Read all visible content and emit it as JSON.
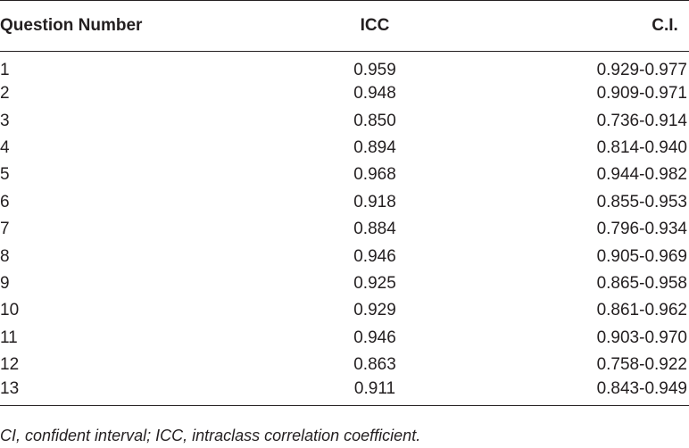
{
  "table": {
    "header": [
      "Question Number",
      "ICC",
      "C.I."
    ],
    "rows": [
      [
        "1",
        "0.959",
        "0.929-0.977"
      ],
      [
        "2",
        "0.948",
        "0.909-0.971"
      ],
      [
        "3",
        "0.850",
        "0.736-0.914"
      ],
      [
        "4",
        "0.894",
        "0.814-0.940"
      ],
      [
        "5",
        "0.968",
        "0.944-0.982"
      ],
      [
        "6",
        "0.918",
        "0.855-0.953"
      ],
      [
        "7",
        "0.884",
        "0.796-0.934"
      ],
      [
        "8",
        "0.946",
        "0.905-0.969"
      ],
      [
        "9",
        "0.925",
        "0.865-0.958"
      ],
      [
        "10",
        "0.929",
        "0.861-0.962"
      ],
      [
        "11",
        "0.946",
        "0.903-0.970"
      ],
      [
        "12",
        "0.863",
        "0.758-0.922"
      ],
      [
        "13",
        "0.911",
        "0.843-0.949"
      ]
    ]
  },
  "footnote": "CI, confident interval; ICC, intraclass correlation coefficient."
}
